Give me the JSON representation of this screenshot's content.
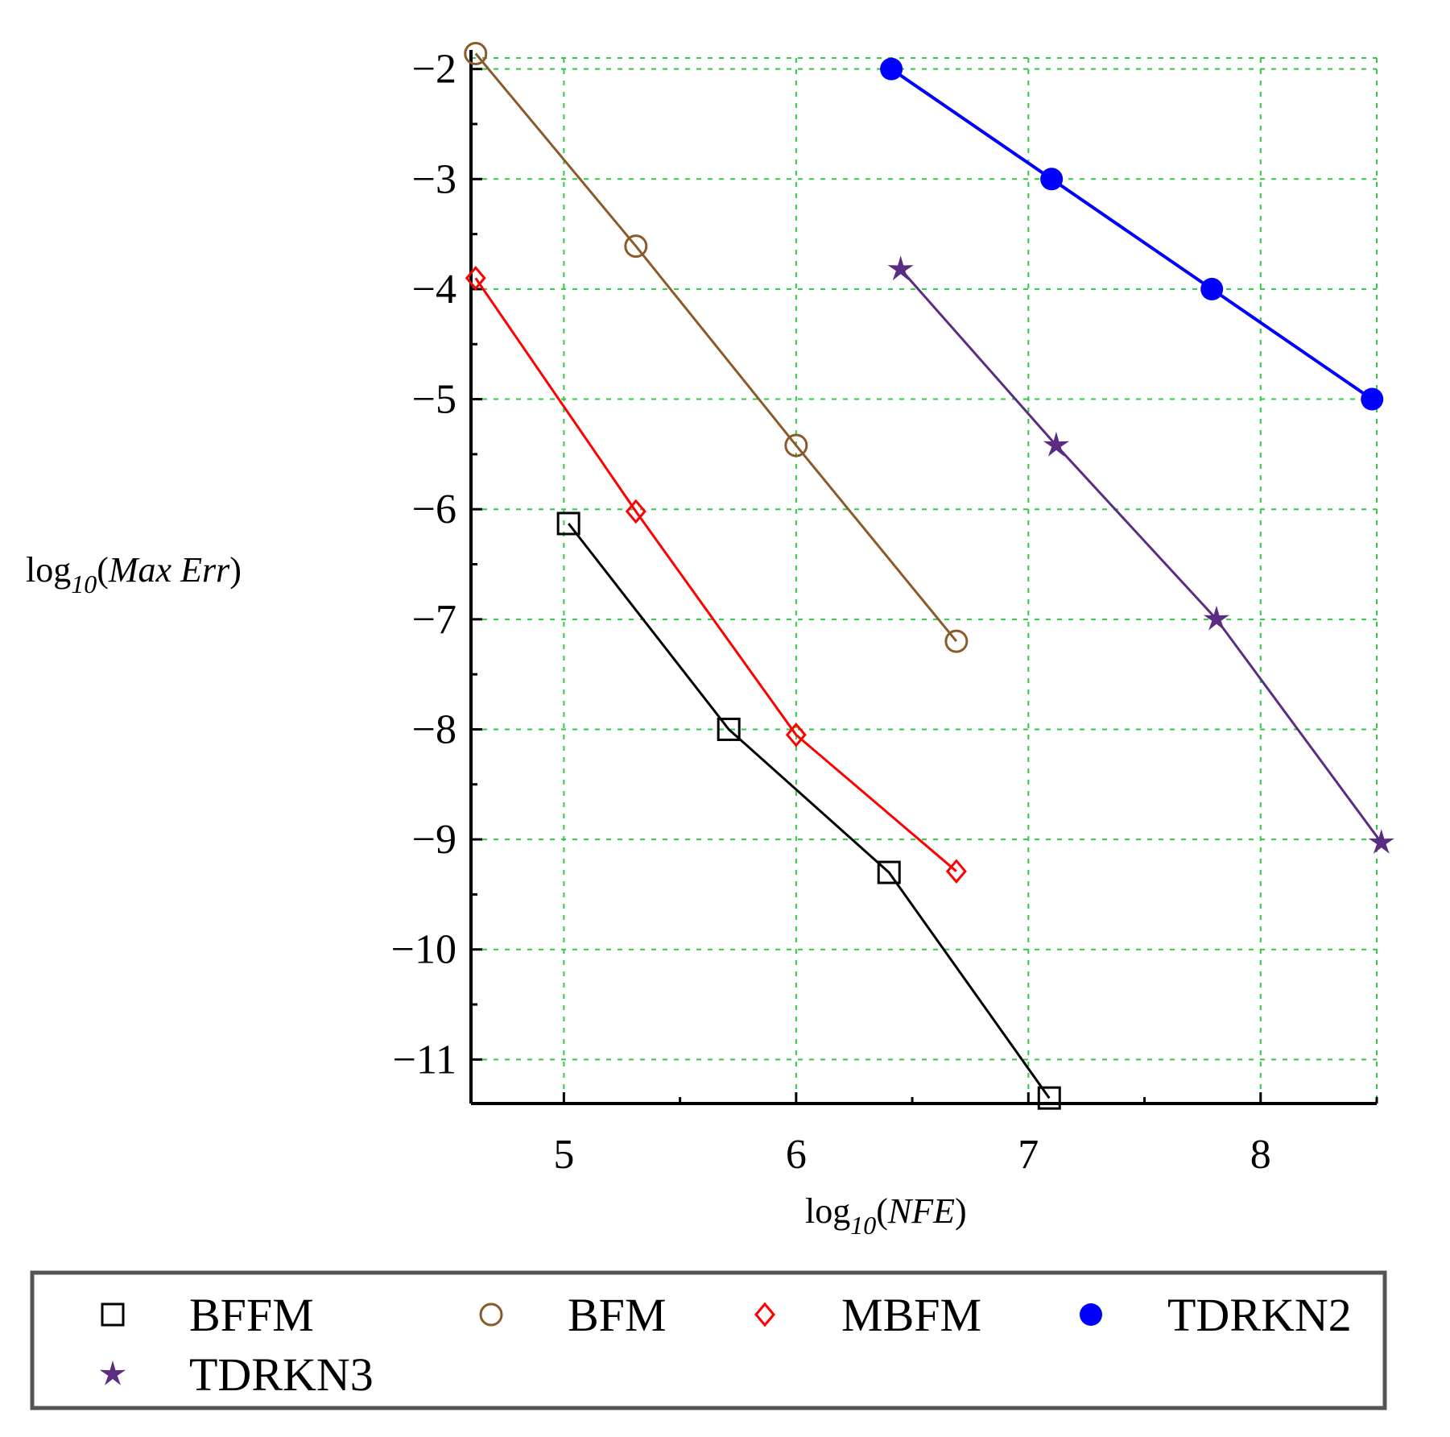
{
  "chart_data": {
    "type": "line",
    "title": "",
    "xlabel": {
      "prefix": "log",
      "sub": "10",
      "open": "(",
      "var": "NFE",
      "close": ")"
    },
    "ylabel": {
      "prefix": "log",
      "sub": "10",
      "open": "(",
      "var": "Max Err",
      "close": ")"
    },
    "xlim": [
      4.6,
      8.5
    ],
    "ylim": [
      -11.4,
      -1.9
    ],
    "xticks": [
      5,
      6,
      7,
      8
    ],
    "xtick_labels": [
      "5",
      "6",
      "7",
      "8"
    ],
    "yticks": [
      -2,
      -3,
      -4,
      -5,
      -6,
      -7,
      -8,
      -9,
      -10,
      -11
    ],
    "ytick_labels": [
      "−2",
      "−3",
      "−4",
      "−5",
      "−6",
      "−7",
      "−8",
      "−9",
      "−10",
      "−11"
    ],
    "grid": true,
    "legend_position": "bottom",
    "series": [
      {
        "name": "BFFM",
        "color": "#000000",
        "marker": "square",
        "x": [
          5.02,
          5.71,
          6.4,
          7.09
        ],
        "y": [
          -6.13,
          -8.0,
          -9.3,
          -11.35
        ]
      },
      {
        "name": "BFM",
        "color": "#8B5A2B",
        "marker": "circle-open",
        "x": [
          4.62,
          5.31,
          6.0,
          6.69
        ],
        "y": [
          -1.86,
          -3.61,
          -5.42,
          -7.2
        ]
      },
      {
        "name": "MBFM",
        "color": "#ff0000",
        "marker": "diamond",
        "x": [
          4.62,
          5.31,
          6.0,
          6.69
        ],
        "y": [
          -3.9,
          -6.02,
          -8.05,
          -9.29
        ]
      },
      {
        "name": "TDRKN2",
        "color": "#0000ff",
        "marker": "circle-filled",
        "x": [
          6.41,
          7.1,
          7.79,
          8.48
        ],
        "y": [
          -2.0,
          -3.0,
          -4.0,
          -5.0
        ]
      },
      {
        "name": "TDRKN3",
        "color": "#5a2d82",
        "marker": "star",
        "x": [
          6.45,
          7.12,
          7.81,
          8.52
        ],
        "y": [
          -3.82,
          -5.42,
          -7.0,
          -9.03
        ]
      }
    ]
  }
}
